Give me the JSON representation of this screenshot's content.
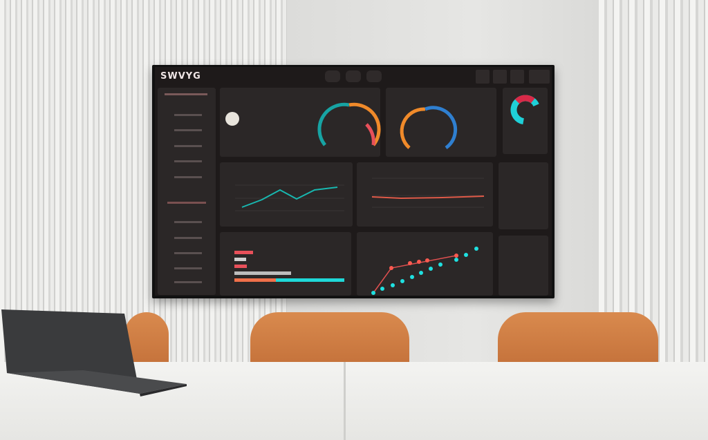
{
  "dashboard": {
    "logo": "SWVYG"
  },
  "colors": {
    "teal": "#1fc8c8",
    "red": "#e8505a",
    "orange": "#f08a2a",
    "blue": "#2f7fd0",
    "panel": "#2b2727"
  },
  "icons": [
    "grid-icon",
    "chart-icon",
    "user-icon",
    "settings-icon"
  ]
}
